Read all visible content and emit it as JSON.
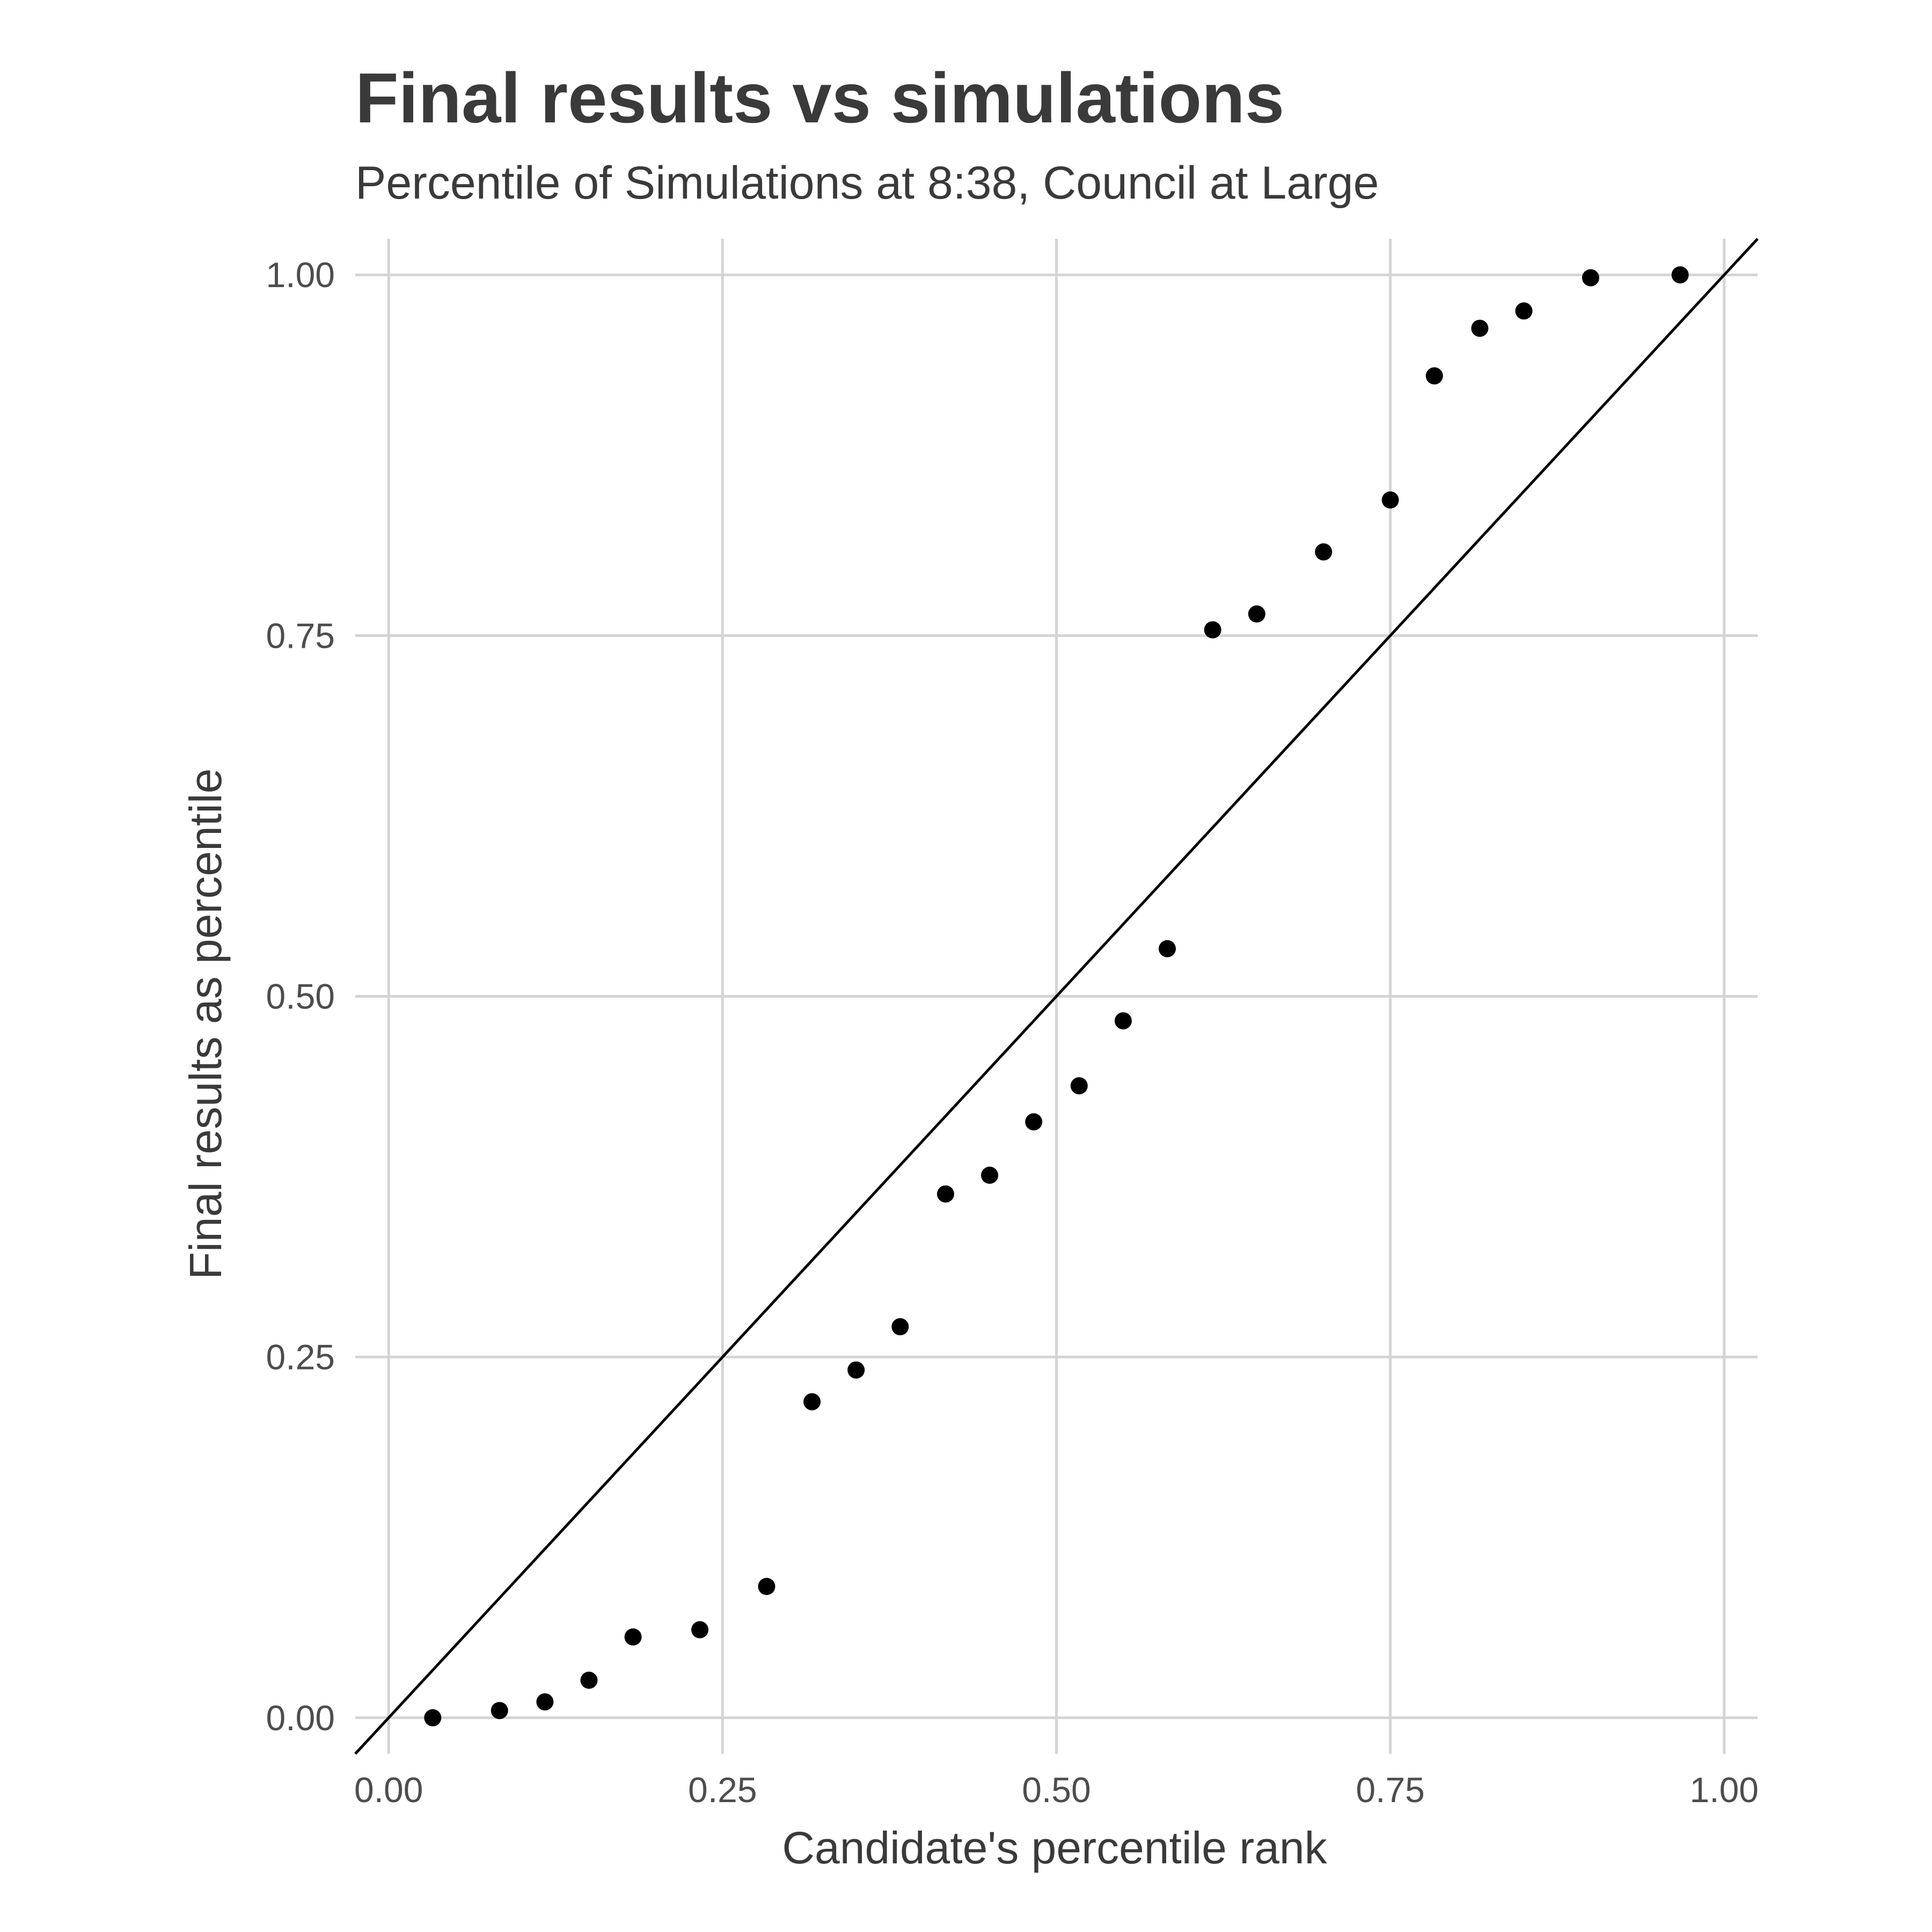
{
  "chart_data": {
    "type": "scatter",
    "title": "Final results vs simulations",
    "subtitle": "Percentile of Simulations at 8:38, Council at Large",
    "xlabel": "Candidate's percentile rank",
    "ylabel": "Final results as percentile",
    "xlim": [
      -0.025,
      1.025
    ],
    "ylim": [
      -0.025,
      1.025
    ],
    "x_ticks": [
      0.0,
      0.25,
      0.5,
      0.75,
      1.0
    ],
    "y_ticks": [
      0.0,
      0.25,
      0.5,
      0.75,
      1.0
    ],
    "x_tick_labels": [
      "0.00",
      "0.25",
      "0.50",
      "0.75",
      "1.00"
    ],
    "y_tick_labels": [
      "0.00",
      "0.25",
      "0.50",
      "0.75",
      "1.00"
    ],
    "grid": true,
    "reference_line": {
      "type": "identity",
      "slope": 1,
      "intercept": 0
    },
    "points": [
      {
        "x": 0.033,
        "y": 0.0
      },
      {
        "x": 0.083,
        "y": 0.005
      },
      {
        "x": 0.117,
        "y": 0.011
      },
      {
        "x": 0.15,
        "y": 0.026
      },
      {
        "x": 0.183,
        "y": 0.056
      },
      {
        "x": 0.233,
        "y": 0.061
      },
      {
        "x": 0.283,
        "y": 0.091
      },
      {
        "x": 0.317,
        "y": 0.219
      },
      {
        "x": 0.35,
        "y": 0.241
      },
      {
        "x": 0.383,
        "y": 0.271
      },
      {
        "x": 0.417,
        "y": 0.363
      },
      {
        "x": 0.45,
        "y": 0.376
      },
      {
        "x": 0.483,
        "y": 0.413
      },
      {
        "x": 0.517,
        "y": 0.438
      },
      {
        "x": 0.55,
        "y": 0.483
      },
      {
        "x": 0.583,
        "y": 0.533
      },
      {
        "x": 0.617,
        "y": 0.754
      },
      {
        "x": 0.65,
        "y": 0.765
      },
      {
        "x": 0.7,
        "y": 0.808
      },
      {
        "x": 0.75,
        "y": 0.844
      },
      {
        "x": 0.783,
        "y": 0.93
      },
      {
        "x": 0.817,
        "y": 0.963
      },
      {
        "x": 0.85,
        "y": 0.975
      },
      {
        "x": 0.9,
        "y": 0.998
      },
      {
        "x": 0.967,
        "y": 1.0
      }
    ],
    "colors": {
      "points": "#000000",
      "line": "#000000",
      "grid": "#d4d4d4",
      "text": "#3a3a3a",
      "ticks": "#4d4d4d"
    }
  }
}
